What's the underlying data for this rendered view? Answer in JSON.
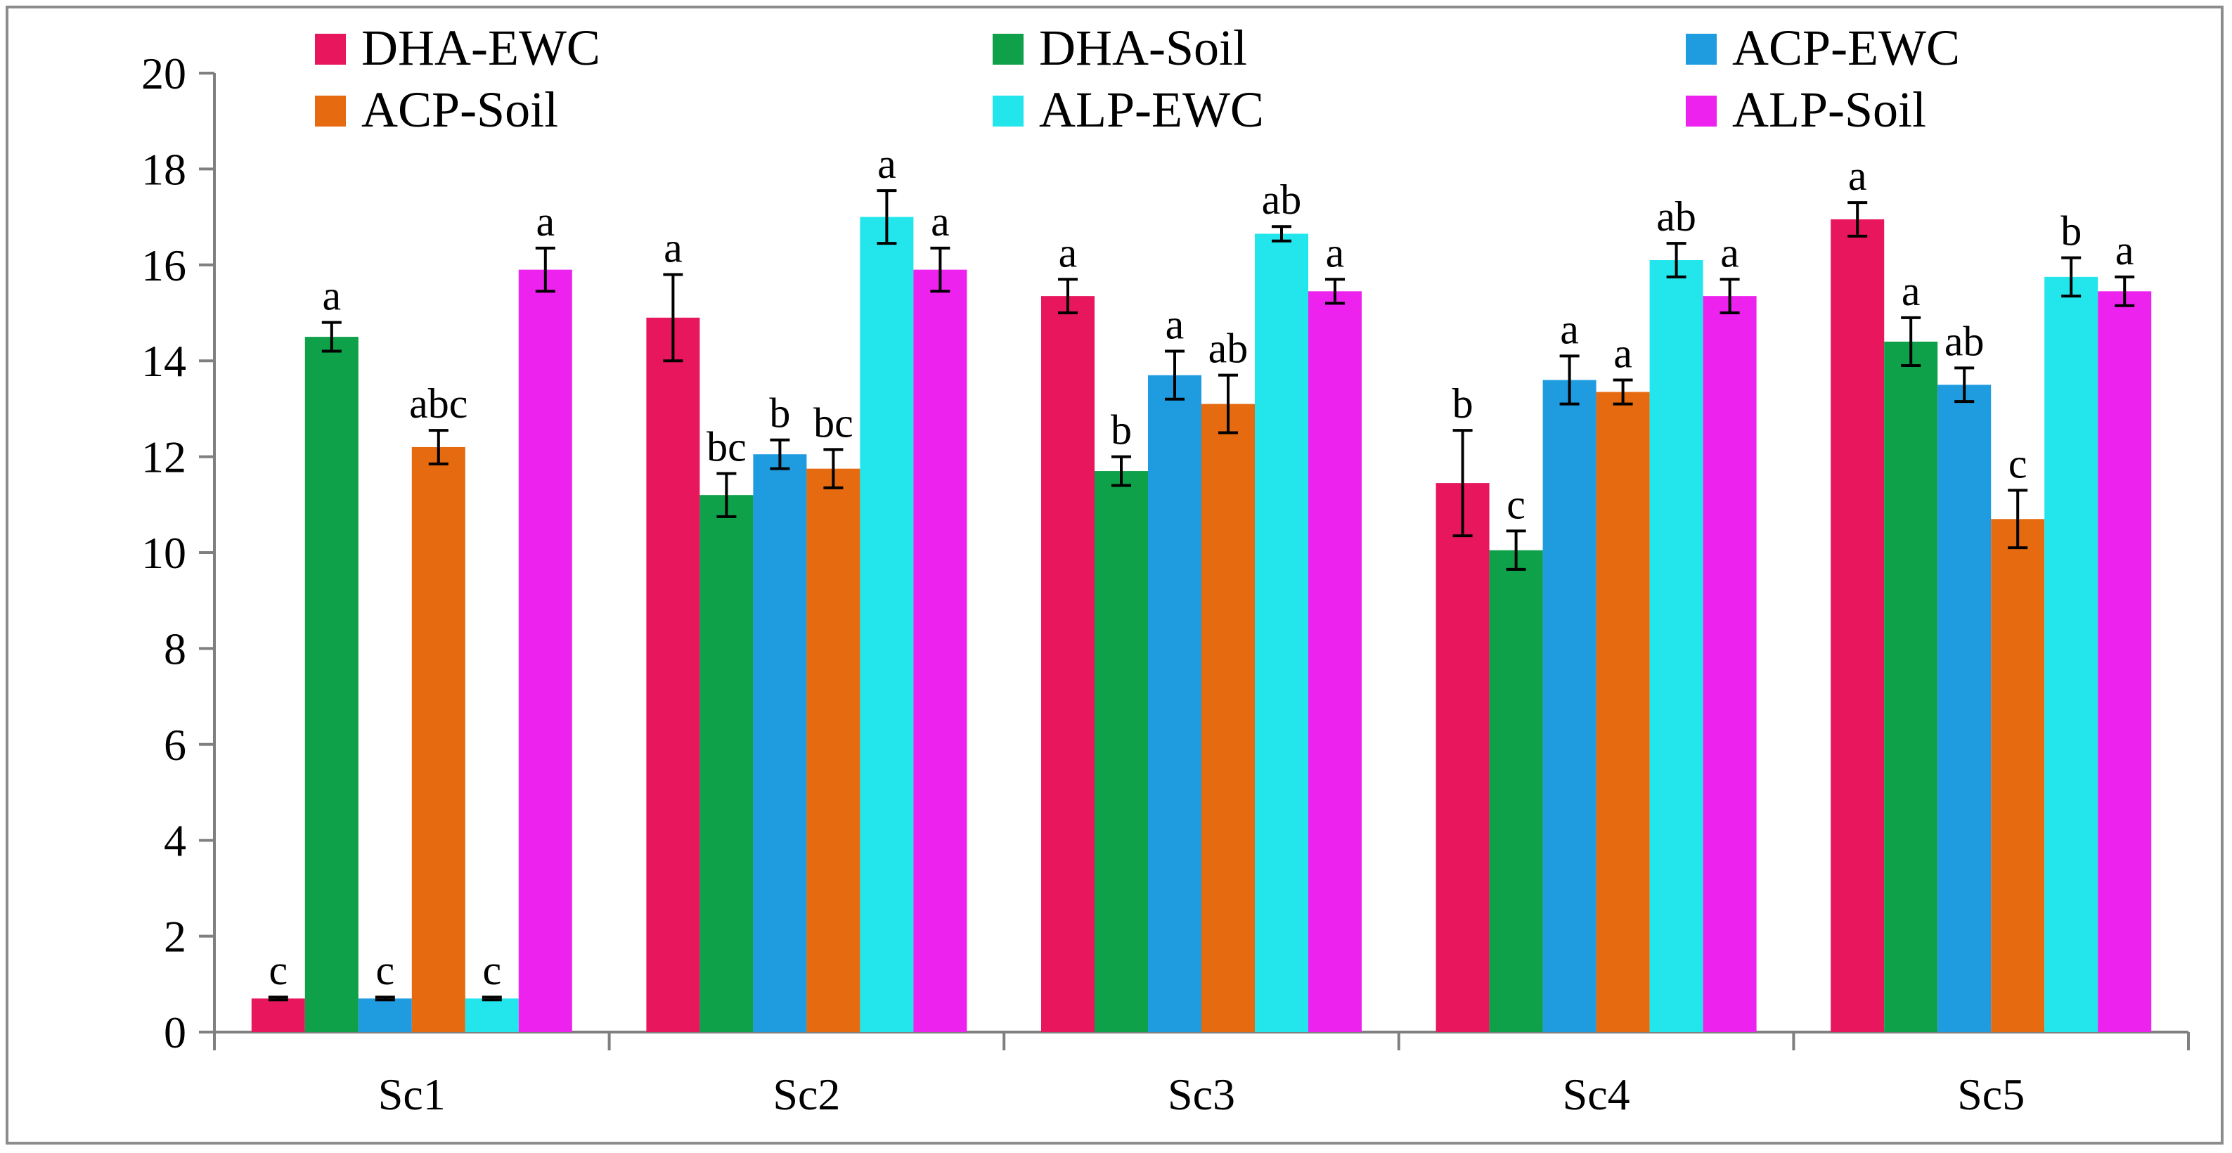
{
  "chart_data": {
    "type": "bar",
    "title": "",
    "xlabel": "",
    "ylabel": "",
    "ylim": [
      0,
      20
    ],
    "yticks": [
      0,
      2,
      4,
      6,
      8,
      10,
      12,
      14,
      16,
      18,
      20
    ],
    "ytick_labels": [
      "0",
      "2",
      "4",
      "6",
      "8",
      "10",
      "12",
      "14",
      "16",
      "18",
      "20"
    ],
    "categories": [
      "Sc1",
      "Sc2",
      "Sc3",
      "Sc4",
      "Sc5"
    ],
    "legend_position": "top",
    "grid": false,
    "series": [
      {
        "name": "DHA-EWC",
        "color": "#E8175D",
        "values": [
          0.7,
          14.9,
          15.35,
          11.45,
          16.95
        ],
        "errors": [
          0.03,
          0.9,
          0.35,
          1.1,
          0.35
        ],
        "labels": [
          "c",
          "a",
          "a",
          "b",
          "a"
        ]
      },
      {
        "name": "DHA-Soil",
        "color": "#0FA04A",
        "values": [
          14.5,
          11.2,
          11.7,
          10.05,
          14.4
        ],
        "errors": [
          0.3,
          0.45,
          0.3,
          0.4,
          0.5
        ],
        "labels": [
          "a",
          "bc",
          "b",
          "c",
          "a"
        ]
      },
      {
        "name": "ACP-EWC",
        "color": "#1F9BE0",
        "values": [
          0.7,
          12.05,
          13.7,
          13.6,
          13.5
        ],
        "errors": [
          0.03,
          0.3,
          0.5,
          0.5,
          0.35
        ],
        "labels": [
          "c",
          "b",
          "a",
          "a",
          "ab"
        ]
      },
      {
        "name": "ACP-Soil",
        "color": "#E56A10",
        "values": [
          12.2,
          11.75,
          13.1,
          13.35,
          10.7
        ],
        "errors": [
          0.35,
          0.4,
          0.6,
          0.25,
          0.6
        ],
        "labels": [
          "abc",
          "bc",
          "ab",
          "a",
          "c"
        ]
      },
      {
        "name": "ALP-EWC",
        "color": "#22E6EC",
        "values": [
          0.7,
          17.0,
          16.65,
          16.1,
          15.75
        ],
        "errors": [
          0.03,
          0.55,
          0.15,
          0.35,
          0.4
        ],
        "labels": [
          "c",
          "a",
          "ab",
          "ab",
          "b"
        ]
      },
      {
        "name": "ALP-Soil",
        "color": "#EE22EE",
        "values": [
          15.9,
          15.9,
          15.45,
          15.35,
          15.45
        ],
        "errors": [
          0.45,
          0.45,
          0.25,
          0.35,
          0.3
        ],
        "labels": [
          "a",
          "a",
          "a",
          "a",
          "a"
        ]
      }
    ]
  }
}
